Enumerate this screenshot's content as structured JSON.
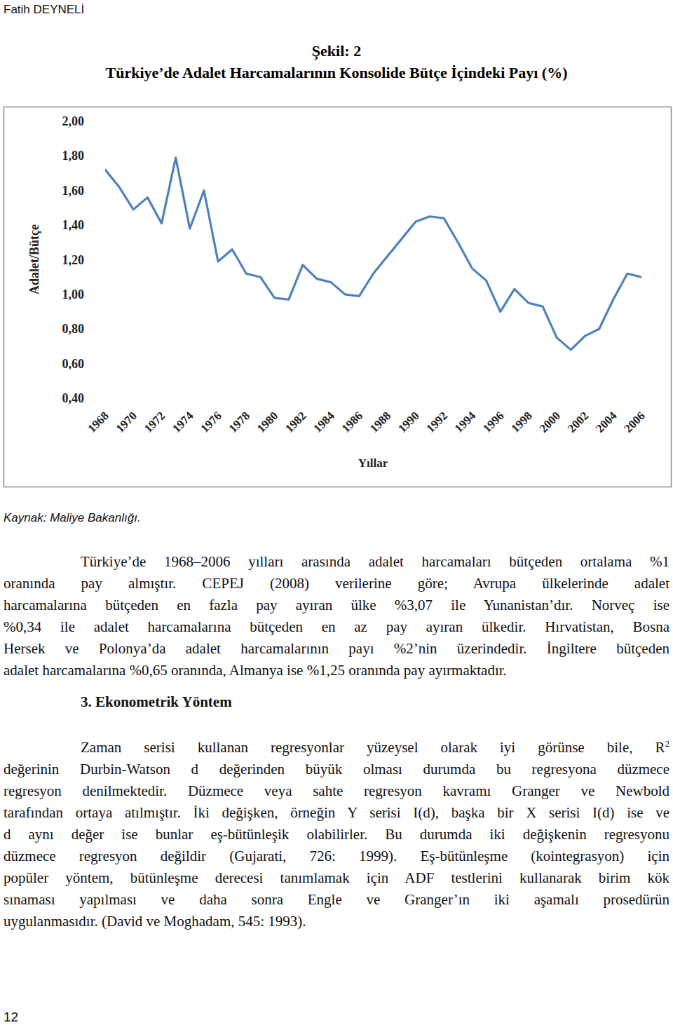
{
  "page": {
    "header": "Fatih DEYNELİ",
    "figure_label": "Şekil: 2",
    "source": "Kaynak: Maliye Bakanlığı.",
    "paragraphs": [
      {
        "lines": [
          {
            "text": "Türkiye’de 1968–2006 yılları arasında adalet harcamaları bütçeden ortalama %1"
          },
          {
            "text": "oranında pay almıştır. CEPEJ (2008) verilerine göre; Avrupa ülkelerinde adalet"
          },
          {
            "text": "harcamalarına bütçeden en fazla pay ayıran ülke %3,07 ile Yunanistan’dır. Norveç ise"
          },
          {
            "text": "%0,34 ile adalet harcamalarına bütçeden en az pay ayıran ülkedir. Hırvatistan, Bosna"
          },
          {
            "text": "Hersek ve Polonya’da adalet harcamalarının payı %2’nin üzerindedir. İngiltere bütçeden"
          },
          {
            "text": "adalet harcamalarına %0,65 oranında, Almanya ise %1,25 oranında pay ayırmaktadır."
          }
        ]
      },
      {
        "heading": "3. Ekonometrik Yöntem"
      },
      {
        "lines": [
          {
            "text": "Zaman serisi kullanan regresyonlar yüzeysel olarak iyi görünse bile, R",
            "sup": "2"
          },
          {
            "text": "değerinin Durbin-Watson d değerinden büyük olması durumda bu regresyona düzmece"
          },
          {
            "text": "regresyon denilmektedir. Düzmece veya sahte regresyon kavramı Granger ve Newbold"
          },
          {
            "text": "tarafından ortaya atılmıştır. İki değişken, örneğin Y serisi I(d), başka bir X serisi I(d) ise ve"
          },
          {
            "text": "d aynı değer ise bunlar eş-bütünleşik olabilirler. Bu durumda iki değişkenin regresyonu"
          },
          {
            "text": "düzmece regresyon değildir (Gujarati, 726: 1999). Eş-bütünleşme (kointegrasyon) için"
          },
          {
            "text": "popüler yöntem, bütünleşme derecesi tanımlamak için ADF testlerini kullanarak birim kök"
          },
          {
            "text": "sınaması yapılması ve daha sonra Engle ve Granger’ın iki aşamalı prosedürün"
          },
          {
            "text": "uygulanmasıdır. (David ve Moghadam, 545: 1993)."
          }
        ]
      }
    ],
    "page_number": "12"
  },
  "chart_data": {
    "type": "line",
    "title": "Türkiye’de Adalet Harcamalarının Konsolide Bütçe İçindeki Payı (%)",
    "xlabel": "Yıllar",
    "ylabel": "Adalet/Bütçe",
    "x": [
      1968,
      1969,
      1970,
      1971,
      1972,
      1973,
      1974,
      1975,
      1976,
      1977,
      1978,
      1979,
      1980,
      1981,
      1982,
      1983,
      1984,
      1985,
      1986,
      1987,
      1988,
      1989,
      1990,
      1991,
      1992,
      1993,
      1994,
      1995,
      1996,
      1997,
      1998,
      1999,
      2000,
      2001,
      2002,
      2003,
      2004,
      2005,
      2006
    ],
    "values": [
      1.72,
      1.62,
      1.49,
      1.56,
      1.41,
      1.79,
      1.38,
      1.6,
      1.19,
      1.26,
      1.12,
      1.1,
      0.98,
      0.97,
      1.17,
      1.09,
      1.07,
      1.0,
      0.99,
      1.12,
      1.22,
      1.32,
      1.42,
      1.45,
      1.44,
      1.3,
      1.15,
      1.08,
      0.9,
      1.03,
      0.95,
      0.93,
      0.75,
      0.68,
      0.76,
      0.8,
      0.97,
      1.12,
      1.1
    ],
    "color": "#4f81bd",
    "xlim": [
      1968,
      2006
    ],
    "xticks": [
      1968,
      1970,
      1972,
      1974,
      1976,
      1978,
      1980,
      1982,
      1984,
      1986,
      1988,
      1990,
      1992,
      1994,
      1996,
      1998,
      2000,
      2002,
      2004,
      2006
    ],
    "ylim": [
      0.4,
      2.0
    ],
    "yticks": [
      {
        "value": 0.4,
        "label": "0,40"
      },
      {
        "value": 0.6,
        "label": "0,60"
      },
      {
        "value": 0.8,
        "label": "0,80"
      },
      {
        "value": 1.0,
        "label": "1,00"
      },
      {
        "value": 1.2,
        "label": "1,20"
      },
      {
        "value": 1.4,
        "label": "1,40"
      },
      {
        "value": 1.6,
        "label": "1,60"
      },
      {
        "value": 1.8,
        "label": "1,80"
      },
      {
        "value": 2.0,
        "label": "2,00"
      }
    ],
    "grid": false
  }
}
